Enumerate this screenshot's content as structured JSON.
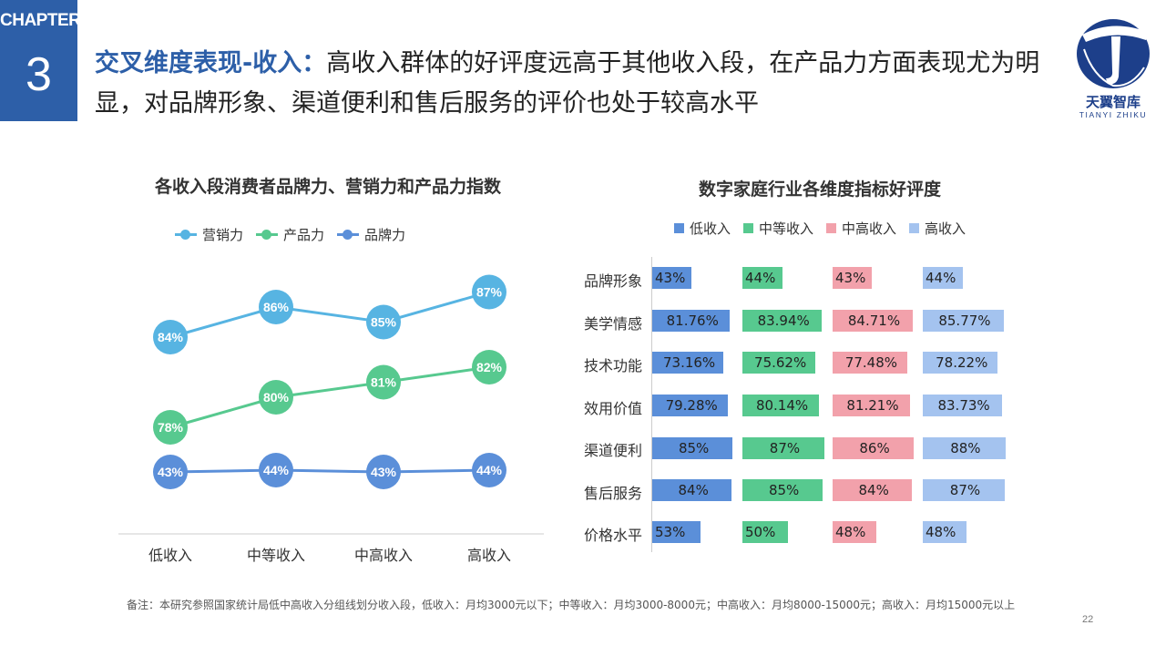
{
  "chapter": {
    "label": "CHAPTER",
    "number": "3"
  },
  "title": {
    "bold": "交叉维度表现-收入：",
    "rest": "高收入群体的好评度远高于其他收入段，在产品力方面表现尤为明显，对品牌形象、渠道便利和售后服务的评价也处于较高水平"
  },
  "logo": {
    "name": "天翼智库",
    "sub": "TIANYI ZHIKU",
    "color": "#1d3f8a",
    "accent": "#ffffff"
  },
  "colors": {
    "low": "#5b8fd9",
    "mid": "#57c98f",
    "midhigh": "#f2a1ab",
    "high": "#a4c3ef",
    "marketing": "#57b4e2",
    "product": "#57c98f",
    "brand": "#5b8fd9"
  },
  "chart_data": [
    {
      "type": "line",
      "title": "各收入段消费者品牌力、营销力和产品力指数",
      "categories": [
        "低收入",
        "中等收入",
        "中高收入",
        "高收入"
      ],
      "series": [
        {
          "name": "营销力",
          "values": [
            84,
            86,
            85,
            87
          ],
          "labels": [
            "84%",
            "86%",
            "85%",
            "87%"
          ]
        },
        {
          "name": "产品力",
          "values": [
            78,
            80,
            81,
            82
          ],
          "labels": [
            "78%",
            "80%",
            "81%",
            "82%"
          ]
        },
        {
          "name": "品牌力",
          "values": [
            43,
            44,
            43,
            44
          ],
          "labels": [
            "43%",
            "44%",
            "43%",
            "44%"
          ]
        }
      ],
      "legend_position": "top"
    },
    {
      "type": "bar",
      "orientation": "horizontal",
      "title": "数字家庭行业各维度指标好评度",
      "categories": [
        "品牌形象",
        "美学情感",
        "技术功能",
        "效用价值",
        "渠道便利",
        "售后服务",
        "价格水平"
      ],
      "series": [
        {
          "name": "低收入",
          "values": [
            43,
            81.76,
            73.16,
            79.28,
            85,
            84,
            53
          ],
          "labels": [
            "43%",
            "81.76%",
            "73.16%",
            "79.28%",
            "85%",
            "84%",
            "53%"
          ]
        },
        {
          "name": "中等收入",
          "values": [
            44,
            83.94,
            75.62,
            80.14,
            87,
            85,
            50
          ],
          "labels": [
            "44%",
            "83.94%",
            "75.62%",
            "80.14%",
            "87%",
            "85%",
            "50%"
          ]
        },
        {
          "name": "中高收入",
          "values": [
            43,
            84.71,
            77.48,
            81.21,
            86,
            84,
            48
          ],
          "labels": [
            "43%",
            "84.71%",
            "77.48%",
            "81.21%",
            "86%",
            "84%",
            "48%"
          ]
        },
        {
          "name": "高收入",
          "values": [
            44,
            85.77,
            78.22,
            83.73,
            88,
            87,
            48
          ],
          "labels": [
            "44%",
            "85.77%",
            "78.22%",
            "83.73%",
            "88%",
            "87%",
            "48%"
          ]
        }
      ],
      "legend_position": "top"
    }
  ],
  "footnote": "备注：本研究参照国家统计局低中高收入分组线划分收入段，低收入：月均3000元以下；中等收入：月均3000-8000元；中高收入：月均8000-15000元；高收入：月均15000元以上",
  "page_number": "22"
}
